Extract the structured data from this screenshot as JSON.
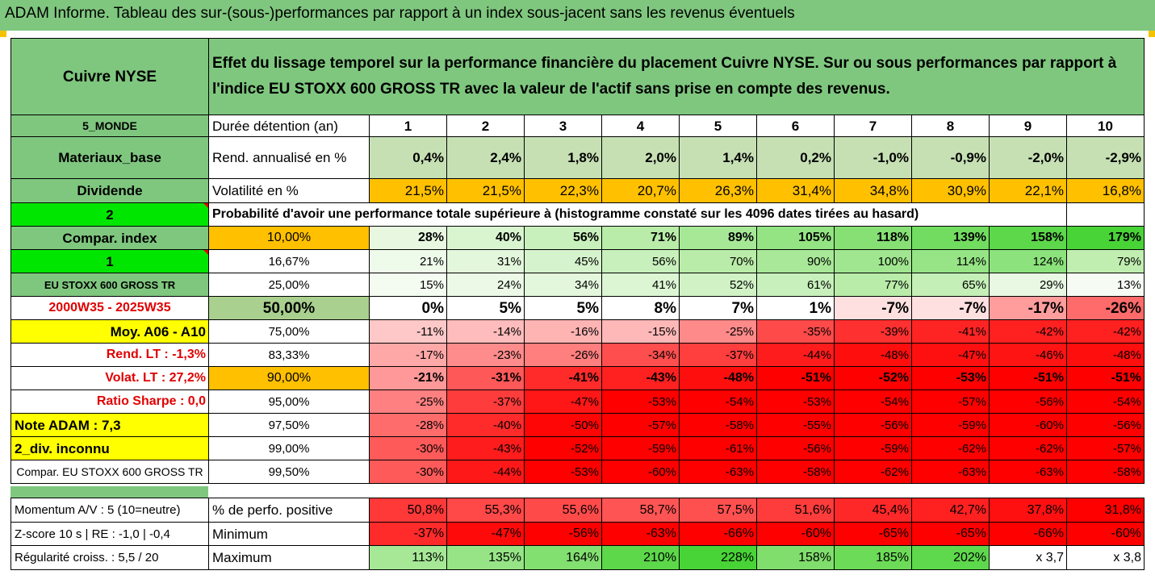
{
  "title": "ADAM Informe. Tableau des sur-(sous-)performances par rapport à un index sous-jacent sans les revenus éventuels",
  "asset_name": "Cuivre NYSE",
  "description": "Effet du lissage temporel sur la performance financière du placement Cuivre NYSE. Sur ou sous performances par rapport à l'indice EU STOXX 600 GROSS TR avec la valeur de l'actif sans prise en compte des revenus.",
  "colors": {
    "header_green": "#7fc77f",
    "lime": "#00e600",
    "yellow": "#ffff00",
    "orange": "#ffc000",
    "pale_green": "#c6e0b4",
    "red": "#ff0000",
    "label_red": "#e00000"
  },
  "table": {
    "rows": [
      {
        "left": "5_MONDE",
        "label": "Durée détention (an)",
        "values": [
          "1",
          "2",
          "3",
          "4",
          "5",
          "6",
          "7",
          "8",
          "9",
          "10"
        ]
      },
      {
        "left": "Materiaux_base",
        "label": "Rend. annualisé en %",
        "values": [
          "0,4%",
          "2,4%",
          "1,8%",
          "2,0%",
          "1,4%",
          "0,2%",
          "-1,0%",
          "-0,9%",
          "-2,0%",
          "-2,9%"
        ]
      },
      {
        "left": "Dividende",
        "label": "Volatilité en %",
        "values": [
          "21,5%",
          "21,5%",
          "22,3%",
          "20,7%",
          "26,3%",
          "31,4%",
          "34,8%",
          "30,9%",
          "22,1%",
          "16,8%"
        ]
      },
      {
        "left": "2",
        "label": "Probabilité d'avoir une performance totale supérieure à (histogramme constaté sur les 4096 dates tirées au hasard)"
      },
      {
        "left": "Compar. index",
        "label": "10,00%",
        "values": [
          "28%",
          "40%",
          "56%",
          "71%",
          "89%",
          "105%",
          "118%",
          "139%",
          "158%",
          "179%"
        ]
      },
      {
        "left": "1",
        "label": "16,67%",
        "values": [
          "21%",
          "31%",
          "45%",
          "56%",
          "70%",
          "90%",
          "100%",
          "114%",
          "124%",
          "79%"
        ]
      },
      {
        "left": "EU STOXX 600 GROSS TR",
        "label": "25,00%",
        "values": [
          "15%",
          "24%",
          "34%",
          "41%",
          "52%",
          "61%",
          "77%",
          "65%",
          "29%",
          "13%"
        ]
      },
      {
        "left": "2000W35 - 2025W35",
        "label": "50,00%",
        "values": [
          "0%",
          "5%",
          "5%",
          "8%",
          "7%",
          "1%",
          "-7%",
          "-7%",
          "-17%",
          "-26%"
        ]
      },
      {
        "left": "Moy. A06 - A10",
        "label": "75,00%",
        "values": [
          "-11%",
          "-14%",
          "-16%",
          "-15%",
          "-25%",
          "-35%",
          "-39%",
          "-41%",
          "-42%",
          "-42%"
        ]
      },
      {
        "left": "Rend. LT :   -1,3%",
        "label": "83,33%",
        "values": [
          "-17%",
          "-23%",
          "-26%",
          "-34%",
          "-37%",
          "-44%",
          "-48%",
          "-47%",
          "-46%",
          "-48%"
        ]
      },
      {
        "left": "Volat. LT :   27,2%",
        "label": "90,00%",
        "values": [
          "-21%",
          "-31%",
          "-41%",
          "-43%",
          "-48%",
          "-51%",
          "-52%",
          "-53%",
          "-51%",
          "-51%"
        ]
      },
      {
        "left": "Ratio Sharpe :   0,0",
        "label": "95,00%",
        "values": [
          "-25%",
          "-37%",
          "-47%",
          "-53%",
          "-54%",
          "-53%",
          "-54%",
          "-57%",
          "-56%",
          "-54%"
        ]
      },
      {
        "left": "Note ADAM : 7,3",
        "label": "97,50%",
        "values": [
          "-28%",
          "-40%",
          "-50%",
          "-57%",
          "-58%",
          "-55%",
          "-56%",
          "-59%",
          "-60%",
          "-56%"
        ]
      },
      {
        "left": "2_div. inconnu",
        "label": "99,00%",
        "values": [
          "-30%",
          "-43%",
          "-52%",
          "-59%",
          "-61%",
          "-56%",
          "-59%",
          "-62%",
          "-62%",
          "-57%"
        ]
      },
      {
        "left": "Compar. EU STOXX 600 GROSS TR",
        "label": "99,50%",
        "values": [
          "-30%",
          "-44%",
          "-53%",
          "-60%",
          "-63%",
          "-58%",
          "-62%",
          "-63%",
          "-63%",
          "-58%"
        ]
      },
      {
        "left": "Momentum A/V : 5 (10=neutre)",
        "label": "% de perfo. positive",
        "values": [
          "50,8%",
          "55,3%",
          "55,6%",
          "58,7%",
          "57,5%",
          "51,6%",
          "45,4%",
          "42,7%",
          "37,8%",
          "31,8%"
        ]
      },
      {
        "left": "Z-score 10 s  |  RE : -1,0  |  -0,4",
        "label": "Minimum",
        "values": [
          "-37%",
          "-47%",
          "-56%",
          "-63%",
          "-66%",
          "-60%",
          "-65%",
          "-65%",
          "-66%",
          "-60%"
        ]
      },
      {
        "left": "Régularité croiss. : 5,5 / 20",
        "label": "Maximum",
        "values": [
          "113%",
          "135%",
          "164%",
          "210%",
          "228%",
          "158%",
          "185%",
          "202%",
          "x 3,7",
          "x 3,8"
        ]
      }
    ]
  }
}
